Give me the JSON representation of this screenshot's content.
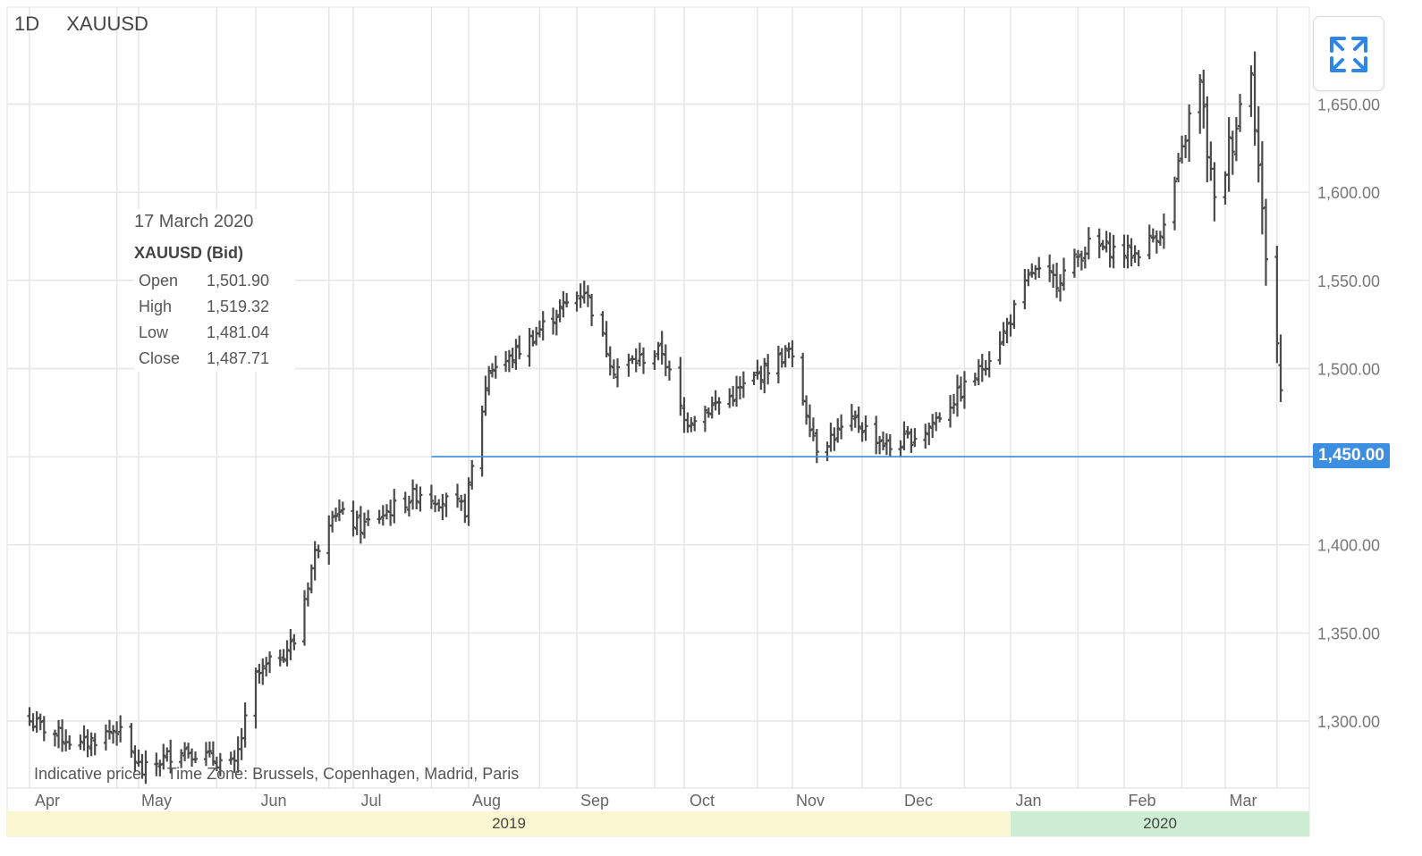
{
  "header": {
    "timeframe": "1D",
    "symbol": "XAUUSD"
  },
  "tooltip": {
    "date": "17 March 2020",
    "series": "XAUUSD (Bid)",
    "rows": [
      {
        "label": "Open",
        "value": "1,501.90"
      },
      {
        "label": "High",
        "value": "1,519.32"
      },
      {
        "label": "Low",
        "value": "1,481.04"
      },
      {
        "label": "Close",
        "value": "1,487.71"
      }
    ]
  },
  "footnote": {
    "indicative": "Indicative price",
    "timezone": "Time Zone: Brussels, Copenhagen, Madrid, Paris"
  },
  "price_line": {
    "label": "1,450.00",
    "value": 1450,
    "color": "#3b8ee0"
  },
  "years": {
    "y2019": "2019",
    "y2020": "2020"
  },
  "icons": {
    "expand": "expand-icon"
  },
  "colors": {
    "bars": "#4a4a4a",
    "grid": "#e6e6e6",
    "accent": "#3b8ee0"
  },
  "chart_data": {
    "type": "ohlc",
    "title": "",
    "ylim": [
      1262,
      1705
    ],
    "yticks": [
      1300,
      1350,
      1400,
      1450,
      1500,
      1550,
      1600,
      1650
    ],
    "ytick_labels": [
      "1,300.00",
      "1,350.00",
      "1,400.00",
      "1,450.00",
      "1,500.00",
      "1,550.00",
      "1,600.00",
      "1,650.00"
    ],
    "grid": true,
    "months": [
      "Apr",
      "May",
      "Jun",
      "Jul",
      "Aug",
      "Sep",
      "Oct",
      "Nov",
      "Dec",
      "Jan",
      "Feb",
      "Mar"
    ],
    "anchors": [
      {
        "date": "2019-04-01",
        "close": 1300
      },
      {
        "date": "2019-04-15",
        "close": 1286
      },
      {
        "date": "2019-04-25",
        "close": 1296
      },
      {
        "date": "2019-05-02",
        "close": 1271
      },
      {
        "date": "2019-05-13",
        "close": 1285
      },
      {
        "date": "2019-05-28",
        "close": 1274
      },
      {
        "date": "2019-06-03",
        "close": 1325
      },
      {
        "date": "2019-06-14",
        "close": 1345
      },
      {
        "date": "2019-06-20",
        "close": 1395
      },
      {
        "date": "2019-06-25",
        "close": 1420
      },
      {
        "date": "2019-07-03",
        "close": 1410
      },
      {
        "date": "2019-07-19",
        "close": 1430
      },
      {
        "date": "2019-07-31",
        "close": 1420
      },
      {
        "date": "2019-08-07",
        "close": 1500
      },
      {
        "date": "2019-08-13",
        "close": 1505
      },
      {
        "date": "2019-08-26",
        "close": 1530
      },
      {
        "date": "2019-09-04",
        "close": 1545
      },
      {
        "date": "2019-09-12",
        "close": 1500
      },
      {
        "date": "2019-09-25",
        "close": 1510
      },
      {
        "date": "2019-10-01",
        "close": 1470
      },
      {
        "date": "2019-10-15",
        "close": 1485
      },
      {
        "date": "2019-10-31",
        "close": 1510
      },
      {
        "date": "2019-11-08",
        "close": 1456
      },
      {
        "date": "2019-11-19",
        "close": 1470
      },
      {
        "date": "2019-11-29",
        "close": 1455
      },
      {
        "date": "2019-12-09",
        "close": 1465
      },
      {
        "date": "2019-12-24",
        "close": 1498
      },
      {
        "date": "2019-12-31",
        "close": 1520
      },
      {
        "date": "2020-01-08",
        "close": 1555
      },
      {
        "date": "2020-01-15",
        "close": 1550
      },
      {
        "date": "2020-01-24",
        "close": 1570
      },
      {
        "date": "2020-02-06",
        "close": 1565
      },
      {
        "date": "2020-02-14",
        "close": 1580
      },
      {
        "date": "2020-02-21",
        "close": 1640
      },
      {
        "date": "2020-02-24",
        "close": 1660
      },
      {
        "date": "2020-02-28",
        "close": 1590
      },
      {
        "date": "2020-03-09",
        "close": 1675
      },
      {
        "date": "2020-03-12",
        "close": 1585
      },
      {
        "date": "2020-03-16",
        "close": 1515
      },
      {
        "date": "2020-03-17",
        "close": 1487.71
      }
    ]
  }
}
